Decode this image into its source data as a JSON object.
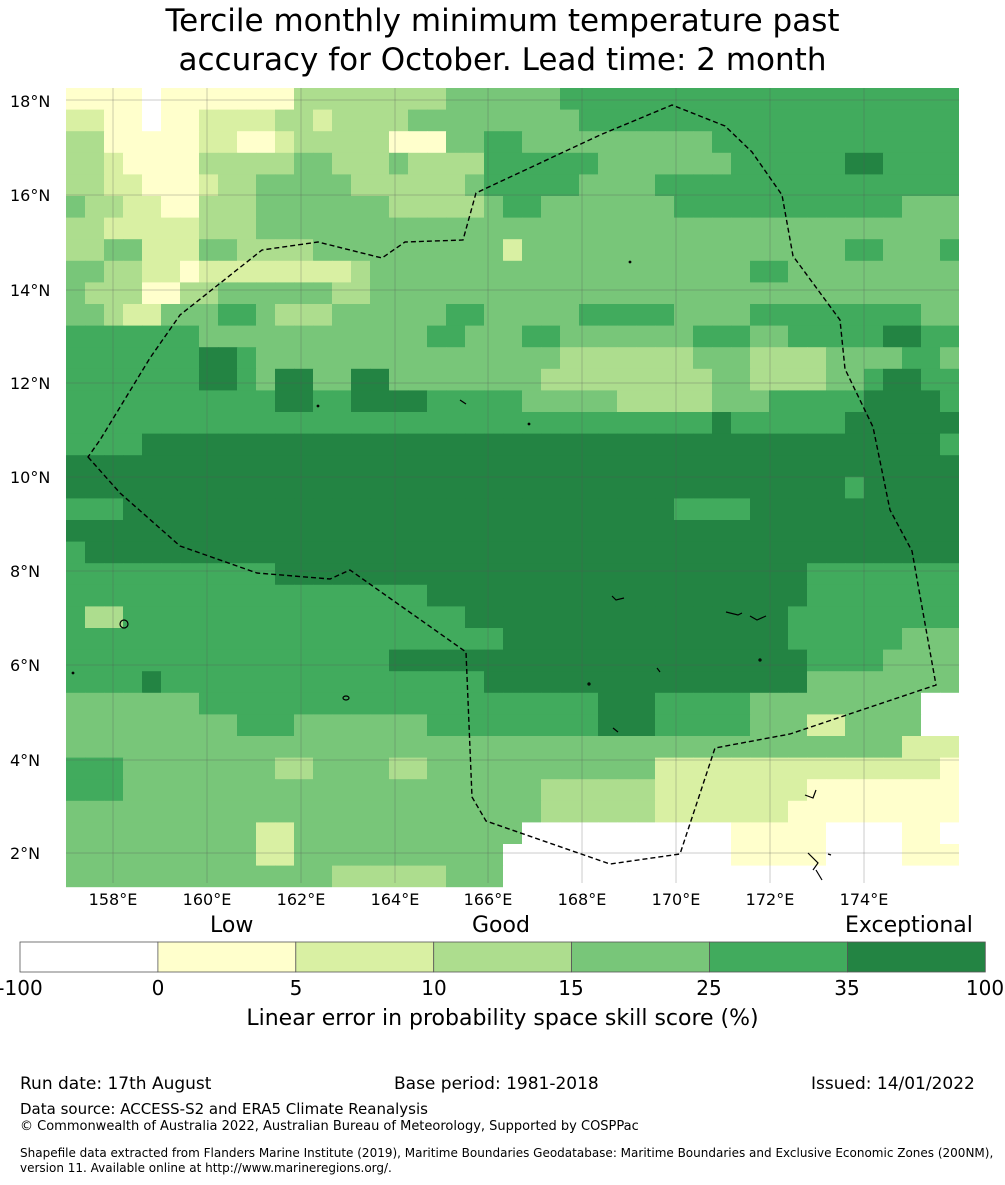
{
  "title": {
    "line1": "Tercile monthly minimum temperature past",
    "line2": "accuracy for October. Lead time: 2 month"
  },
  "map": {
    "lat_labels": [
      "18°N",
      "16°N",
      "14°N",
      "12°N",
      "10°N",
      "8°N",
      "6°N",
      "4°N",
      "2°N"
    ],
    "lon_labels": [
      "158°E",
      "160°E",
      "162°E",
      "164°E",
      "166°E",
      "168°E",
      "170°E",
      "172°E",
      "174°E"
    ],
    "lat_range": [
      1.4,
      18.6
    ],
    "lon_range": [
      157.0,
      176.0
    ],
    "cell_deg": 0.833,
    "colors": {
      "below_0": "#ffffff",
      "0_5": "#ffffcc",
      "5_10": "#d9f0a3",
      "10_15": "#addd8e",
      "15_25": "#78c679",
      "25_35": "#41ab5d",
      "35_100": "#238443",
      "boundary": "#000000"
    }
  },
  "colorbar": {
    "categories": [
      "Low",
      "Good",
      "Exceptional"
    ],
    "ticks": [
      "-100",
      "0",
      "5",
      "10",
      "15",
      "25",
      "35",
      "100"
    ],
    "colors": [
      "#ffffff",
      "#ffffcc",
      "#d9f0a3",
      "#addd8e",
      "#78c679",
      "#41ab5d",
      "#238443"
    ],
    "label": "Linear error in probability space skill score (%)"
  },
  "footer": {
    "run_date": "Run date: 17th August",
    "base_period": "Base period: 1981-2018",
    "issued": "Issued: 14/01/2022",
    "data_source": "Data source: ACCESS-S2 and ERA5 Climate Reanalysis",
    "copyright": "© Commonwealth of Australia 2022, Australian Bureau of Meteorology, Supported by COSPPac",
    "shapefile": "Shapefile data extracted from Flanders Marine Institute (2019), Maritime Boundaries Geodatabase: Maritime Boundaries and Exclusive Economic Zones (200NM), version 11. Available online at http://www.marineregions.org/."
  }
}
